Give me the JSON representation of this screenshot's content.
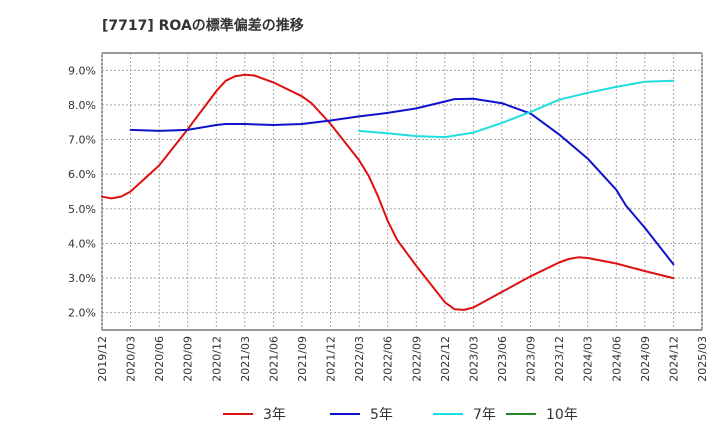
{
  "chart_data": {
    "type": "line",
    "title": "[7717]  ROAの標準偏差の推移",
    "xlabel": "",
    "ylabel": "",
    "ylim": [
      1.5,
      9.5
    ],
    "yticks": [
      2.0,
      3.0,
      4.0,
      5.0,
      6.0,
      7.0,
      8.0,
      9.0
    ],
    "ytick_labels": [
      "2.0%",
      "3.0%",
      "4.0%",
      "5.0%",
      "6.0%",
      "7.0%",
      "8.0%",
      "9.0%"
    ],
    "xticks": [
      "2019/12",
      "2020/03",
      "2020/06",
      "2020/09",
      "2020/12",
      "2021/03",
      "2021/06",
      "2021/09",
      "2021/12",
      "2022/03",
      "2022/06",
      "2022/09",
      "2022/12",
      "2023/03",
      "2023/06",
      "2023/09",
      "2023/12",
      "2024/03",
      "2024/06",
      "2024/09",
      "2024/12",
      "2025/03"
    ],
    "grid": true,
    "legend_position": "bottom",
    "series": [
      {
        "name": "3年",
        "color": "#dd1111",
        "x": [
          "2019/12",
          "2020/01",
          "2020/02",
          "2020/03",
          "2020/06",
          "2020/09",
          "2020/12",
          "2021/01",
          "2021/02",
          "2021/03",
          "2021/04",
          "2021/06",
          "2021/09",
          "2021/10",
          "2021/12",
          "2022/03",
          "2022/04",
          "2022/05",
          "2022/06",
          "2022/07",
          "2022/09",
          "2022/12",
          "2023/01",
          "2023/02",
          "2023/03",
          "2023/06",
          "2023/09",
          "2023/12",
          "2024/01",
          "2024/02",
          "2024/03",
          "2024/06",
          "2024/09",
          "2024/12"
        ],
        "values": [
          5.35,
          5.3,
          5.35,
          5.5,
          6.25,
          7.3,
          8.4,
          8.7,
          8.83,
          8.87,
          8.85,
          8.65,
          8.25,
          8.05,
          7.45,
          6.4,
          5.95,
          5.35,
          4.65,
          4.1,
          3.35,
          2.3,
          2.1,
          2.08,
          2.15,
          2.6,
          3.05,
          3.45,
          3.55,
          3.6,
          3.58,
          3.42,
          3.2,
          3.0
        ]
      },
      {
        "name": "5年",
        "color": "#1111cc",
        "x": [
          "2020/03",
          "2020/06",
          "2020/09",
          "2020/12",
          "2021/01",
          "2021/03",
          "2021/06",
          "2021/09",
          "2021/12",
          "2022/03",
          "2022/06",
          "2022/09",
          "2022/12",
          "2023/01",
          "2023/03",
          "2023/06",
          "2023/09",
          "2023/12",
          "2024/03",
          "2024/06",
          "2024/07",
          "2024/09",
          "2024/12"
        ],
        "values": [
          7.28,
          7.25,
          7.28,
          7.42,
          7.45,
          7.45,
          7.42,
          7.45,
          7.55,
          7.67,
          7.77,
          7.9,
          8.1,
          8.17,
          8.18,
          8.05,
          7.75,
          7.15,
          6.45,
          5.55,
          5.1,
          4.45,
          3.4
        ]
      },
      {
        "name": "7年",
        "color": "#22dddd",
        "x": [
          "2022/03",
          "2022/06",
          "2022/09",
          "2022/12",
          "2023/03",
          "2023/06",
          "2023/09",
          "2023/12",
          "2024/03",
          "2024/06",
          "2024/09",
          "2024/12"
        ],
        "values": [
          7.25,
          7.18,
          7.1,
          7.07,
          7.2,
          7.48,
          7.8,
          8.15,
          8.35,
          8.52,
          8.67,
          8.7
        ]
      },
      {
        "name": "10年",
        "color": "#228822",
        "x": [],
        "values": []
      }
    ]
  }
}
